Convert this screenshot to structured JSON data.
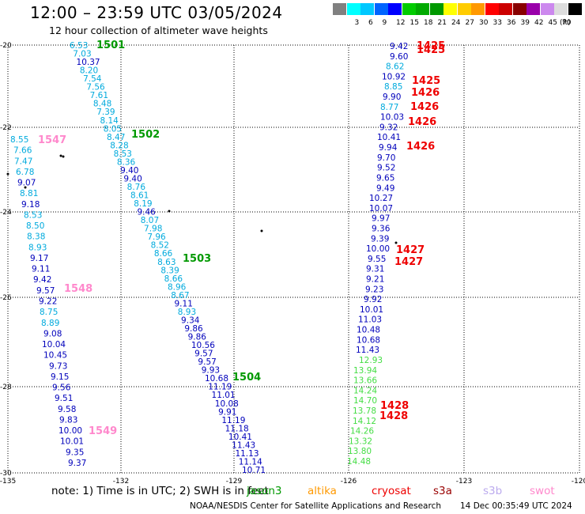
{
  "header": {
    "title": "12:00 – 23:59 UTC 03/05/2024",
    "subtitle": "12 hour collection of altimeter wave heights"
  },
  "legend": {
    "unit": "(ft)",
    "bins": [
      {
        "label": "",
        "color": "#808080"
      },
      {
        "label": "3",
        "color": "#00ffff"
      },
      {
        "label": "6",
        "color": "#00c8ff"
      },
      {
        "label": "9",
        "color": "#0064ff"
      },
      {
        "label": "12",
        "color": "#0000ff"
      },
      {
        "label": "15",
        "color": "#00cc00"
      },
      {
        "label": "18",
        "color": "#00aa00"
      },
      {
        "label": "21",
        "color": "#009900"
      },
      {
        "label": "24",
        "color": "#ffff00"
      },
      {
        "label": "27",
        "color": "#ffcc00"
      },
      {
        "label": "30",
        "color": "#ff9900"
      },
      {
        "label": "33",
        "color": "#ff0000"
      },
      {
        "label": "36",
        "color": "#cc0000"
      },
      {
        "label": "39",
        "color": "#880000"
      },
      {
        "label": "42",
        "color": "#9900aa"
      },
      {
        "label": "45",
        "color": "#cc88ee"
      },
      {
        "label": "70",
        "color": "#dddddd"
      },
      {
        "label": "",
        "color": "#000000"
      }
    ]
  },
  "map": {
    "lon_range": [
      -135,
      -120
    ],
    "lat_range": [
      -30,
      -20
    ],
    "lon_ticks": [
      "-135",
      "-132",
      "-129",
      "-126",
      "-123",
      "-120"
    ],
    "lat_ticks": [
      "-20",
      "-22",
      "-24",
      "-26",
      "-28",
      "-30"
    ],
    "track_a": {
      "color": "#00bbee",
      "values": [
        "6.53",
        "7.03",
        "10.37",
        "8.20",
        "7.54",
        "7.56",
        "7.61",
        "8.48",
        "7.39",
        "8.14",
        "8.05",
        "8.47",
        "8.28",
        "8.53",
        "8.36",
        "9.40",
        "9.40",
        "8.76",
        "8.61",
        "8.19",
        "9.46",
        "8.07",
        "7.98",
        "7.96",
        "8.52",
        "8.66",
        "8.63",
        "8.39",
        "8.66",
        "8.96",
        "8.67",
        "9.11",
        "8.93",
        "9.34",
        "9.86",
        "9.86",
        "10.56",
        "9.57",
        "9.57",
        "9.93",
        "10.68",
        "11.19",
        "11.01",
        "10.08",
        "9.91",
        "11.19",
        "11.18",
        "10.41",
        "11.43",
        "11.13",
        "11.14",
        "10.71"
      ]
    },
    "track_b": {
      "color": "#00bbee",
      "values": [
        "8.55",
        "7.66",
        "7.47",
        "6.78",
        "9.07",
        "8.81",
        "9.18",
        "8.53",
        "8.50",
        "8.38",
        "8.93",
        "9.17",
        "9.11",
        "9.42",
        "9.57",
        "9.22",
        "8.75",
        "8.89",
        "9.08",
        "10.04",
        "10.45",
        "9.73",
        "9.15",
        "9.56",
        "9.51",
        "9.58",
        "9.83",
        "10.00",
        "10.01",
        "9.35",
        "9.37"
      ]
    },
    "track_c": {
      "values": [
        "9.42",
        "9.60",
        "8.62",
        "10.92",
        "8.85",
        "9.90",
        "8.77",
        "10.03",
        "9.32",
        "10.41",
        "9.94",
        "9.70",
        "9.52",
        "9.65",
        "9.49",
        "10.27",
        "10.07",
        "9.97",
        "9.36",
        "9.39",
        "10.00",
        "9.55",
        "9.31",
        "9.21",
        "9.23",
        "9.92",
        "10.01",
        "11.03",
        "10.48",
        "10.68",
        "11.43",
        "12.93",
        "13.94",
        "13.66",
        "14.24",
        "14.70",
        "13.78",
        "14.12",
        "14.26",
        "13.32",
        "13.80",
        "14.48"
      ]
    },
    "pass_ids": [
      {
        "label": "1501",
        "color": "#009900"
      },
      {
        "label": "1502",
        "color": "#009900"
      },
      {
        "label": "1503",
        "color": "#009900"
      },
      {
        "label": "1504",
        "color": "#009900"
      },
      {
        "label": "1547",
        "color": "#ff88cc"
      },
      {
        "label": "1548",
        "color": "#ff88cc"
      },
      {
        "label": "1549",
        "color": "#ff88cc"
      },
      {
        "label": "1425",
        "color": "#ee0000"
      },
      {
        "label": "1425",
        "color": "#ee0000"
      },
      {
        "label": "1425",
        "color": "#ee0000"
      },
      {
        "label": "1426",
        "color": "#ee0000"
      },
      {
        "label": "1426",
        "color": "#ee0000"
      },
      {
        "label": "1426",
        "color": "#ee0000"
      },
      {
        "label": "1426",
        "color": "#ee0000"
      },
      {
        "label": "1427",
        "color": "#ee0000"
      },
      {
        "label": "1427",
        "color": "#ee0000"
      },
      {
        "label": "1428",
        "color": "#ee0000"
      },
      {
        "label": "1428",
        "color": "#ee0000"
      }
    ]
  },
  "footer": {
    "note": "note:  1) Time is in UTC; 2) SWH is in feet",
    "missions": [
      {
        "label": "jason3",
        "color": "#009900"
      },
      {
        "label": "altika",
        "color": "#ff9900"
      },
      {
        "label": "cryosat",
        "color": "#ee0000"
      },
      {
        "label": "s3a",
        "color": "#990000"
      },
      {
        "label": "s3b",
        "color": "#bbaaee"
      },
      {
        "label": "swot",
        "color": "#ff88cc"
      }
    ],
    "credit": "NOAA/NESDIS Center for Satellite Applications and Research",
    "timestamp": "14 Dec 00:35:49 UTC 2024"
  }
}
